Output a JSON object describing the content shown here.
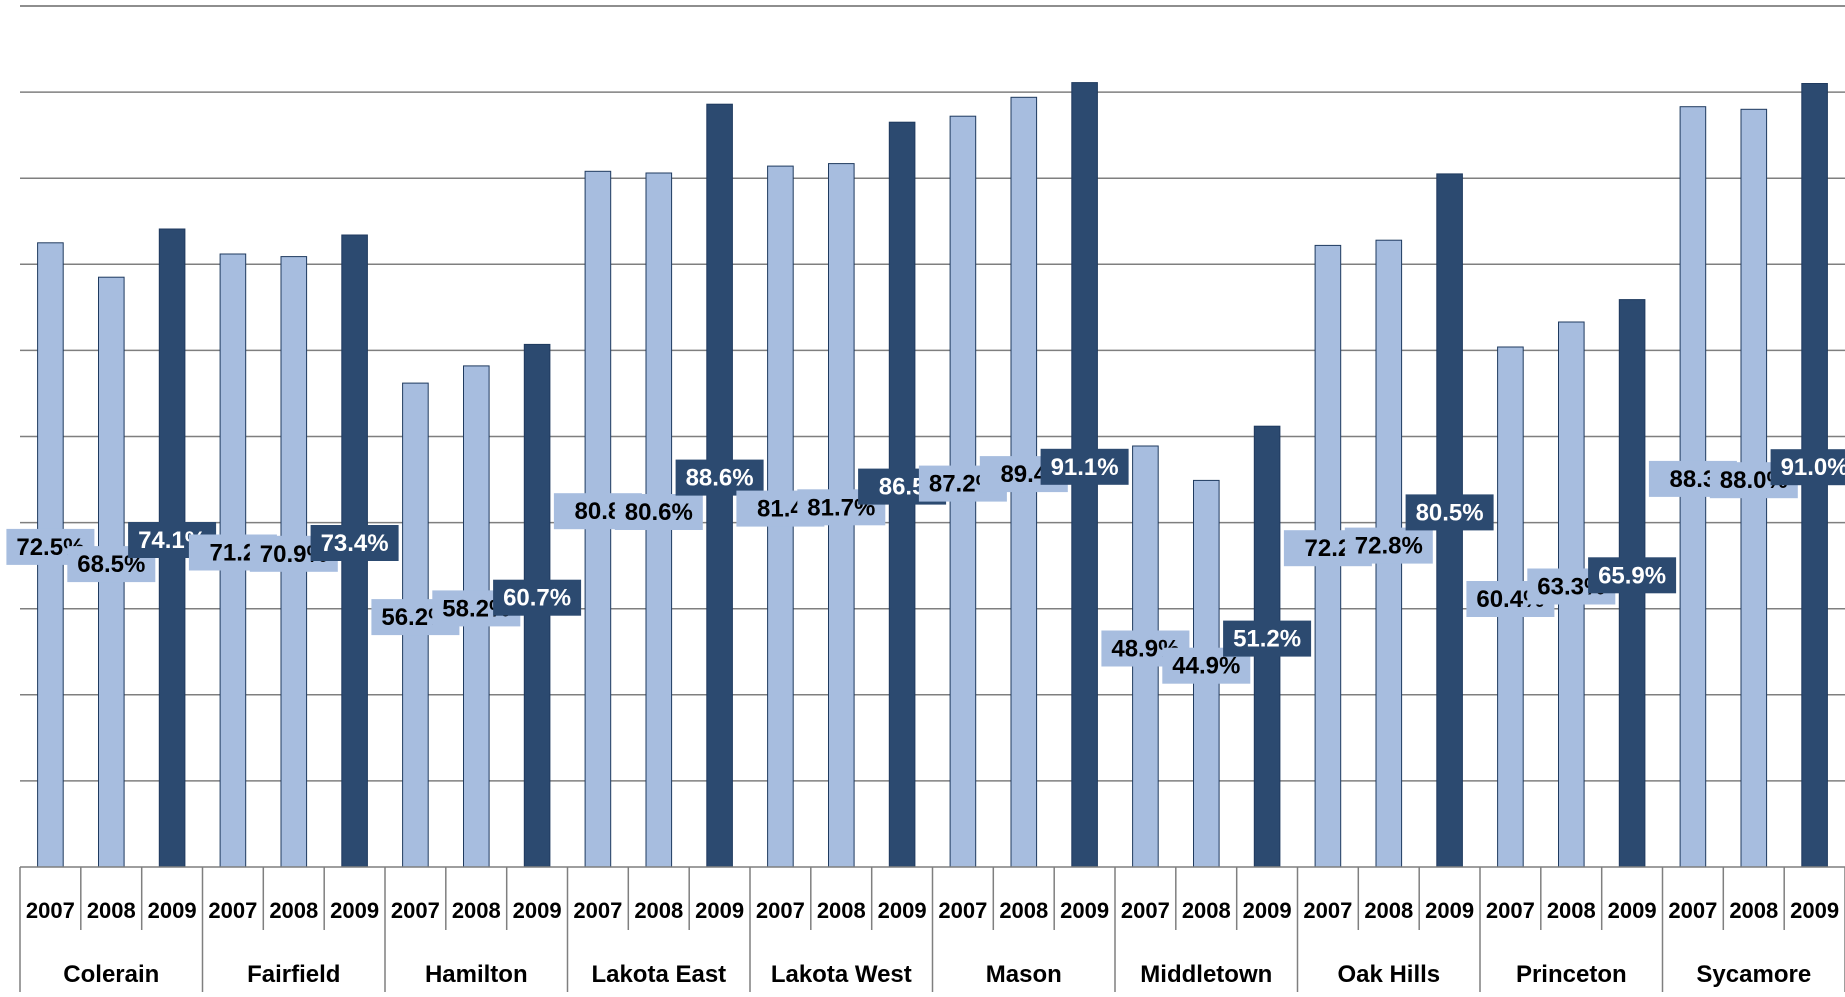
{
  "chart_data": {
    "type": "bar",
    "title": "",
    "xlabel": "",
    "ylabel": "",
    "ylim": [
      0,
      100
    ],
    "grid": true,
    "years": [
      "2007",
      "2008",
      "2009"
    ],
    "groups": [
      {
        "name": "Colerain",
        "values": [
          72.5,
          68.5,
          74.1
        ],
        "labels": [
          "72.5%",
          "68.5%",
          "74.1%"
        ]
      },
      {
        "name": "Fairfield",
        "values": [
          71.2,
          70.9,
          73.4
        ],
        "labels": [
          "71.2",
          "70.9%",
          "73.4%"
        ]
      },
      {
        "name": "Hamilton",
        "values": [
          56.2,
          58.2,
          60.7
        ],
        "labels": [
          "56.2%",
          "58.2%",
          "60.7%"
        ]
      },
      {
        "name": "Lakota East",
        "values": [
          80.8,
          80.6,
          88.6
        ],
        "labels": [
          "80.8",
          "80.6%",
          "88.6%"
        ]
      },
      {
        "name": "Lakota West",
        "values": [
          81.4,
          81.7,
          86.5
        ],
        "labels": [
          "81.4",
          "81.7%",
          "86.5"
        ]
      },
      {
        "name": "Mason",
        "values": [
          87.2,
          89.4,
          91.1
        ],
        "labels": [
          "87.2%",
          "89.4",
          "91.1%"
        ]
      },
      {
        "name": "Middletown",
        "values": [
          48.9,
          44.9,
          51.2
        ],
        "labels": [
          "48.9%",
          "44.9%",
          "51.2%"
        ]
      },
      {
        "name": "Oak Hills",
        "values": [
          72.2,
          72.8,
          80.5
        ],
        "labels": [
          "72.2",
          "72.8%",
          "80.5%"
        ]
      },
      {
        "name": "Princeton",
        "values": [
          60.4,
          63.3,
          65.9
        ],
        "labels": [
          "60.4%",
          "63.3%",
          "65.9%"
        ]
      },
      {
        "name": "Sycamore",
        "values": [
          88.3,
          88.0,
          91.0
        ],
        "labels": [
          "88.3",
          "88.0%",
          "91.0%"
        ]
      }
    ],
    "colors": {
      "prior_years": "#a7bddf",
      "current_year": "#2c4a70",
      "bar_border": "#1f3a5f",
      "grid": "#7f7f7f",
      "label_light_bg": "#a7bddf",
      "label_dark_bg": "#2c4a70",
      "label_light_text": "#000000",
      "label_dark_text": "#ffffff"
    }
  }
}
